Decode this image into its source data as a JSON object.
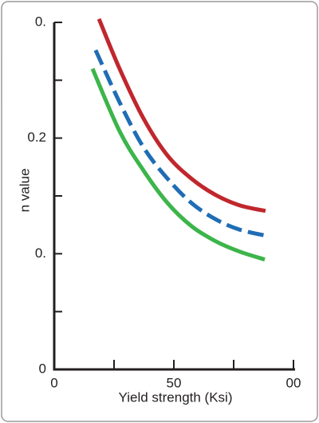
{
  "chart_data": {
    "type": "line",
    "xlabel": "Yield strength (Ksi)",
    "ylabel": "n value",
    "xlim": [
      0,
      100
    ],
    "ylim": [
      0,
      0.3
    ],
    "xticks": [
      0,
      {
        "value": 25,
        "label": null
      },
      50,
      {
        "value": 75,
        "label": null
      },
      {
        "value": 100,
        "label": "00"
      }
    ],
    "yticks": [
      0,
      {
        "value": 0.05,
        "label": null
      },
      {
        "value": 0.1,
        "label": "0."
      },
      {
        "value": 0.15,
        "label": null
      },
      0.2,
      {
        "value": 0.25,
        "label": null
      },
      {
        "value": 0.3,
        "label": "0."
      }
    ],
    "series": [
      {
        "color": "#c0272d",
        "dash": false,
        "x": [
          18.7,
          27.3,
          37.3,
          47.3,
          57.3,
          67.3,
          77.3,
          88.3
        ],
        "values": [
          0.303,
          0.26,
          0.217,
          0.185,
          0.165,
          0.151,
          0.142,
          0.137
        ]
      },
      {
        "color": "#1f6db5",
        "dash": true,
        "x": [
          17.3,
          27.3,
          37.3,
          47.3,
          57.3,
          67.3,
          77.3,
          90
        ],
        "values": [
          0.276,
          0.231,
          0.192,
          0.165,
          0.144,
          0.13,
          0.121,
          0.115
        ]
      },
      {
        "color": "#3cb54a",
        "dash": false,
        "x": [
          16,
          27.3,
          37.3,
          47.3,
          57.3,
          67.3,
          77.3,
          88
        ],
        "values": [
          0.26,
          0.206,
          0.172,
          0.144,
          0.124,
          0.111,
          0.102,
          0.095
        ]
      }
    ]
  }
}
